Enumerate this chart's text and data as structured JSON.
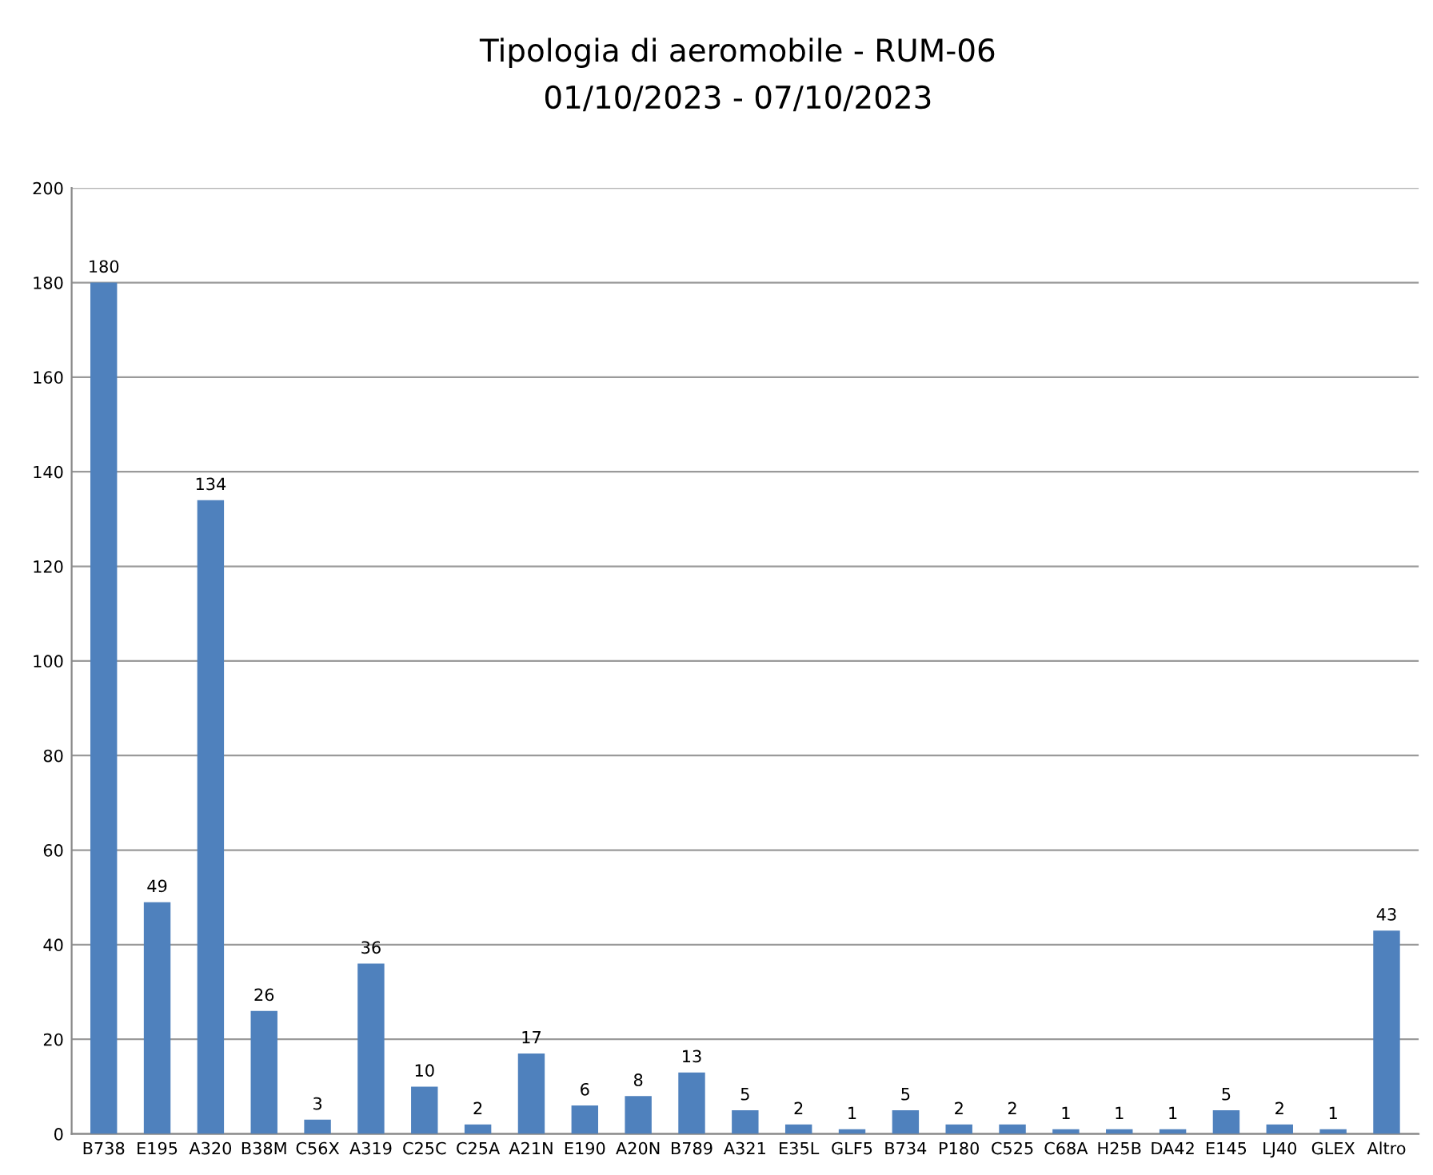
{
  "chart_data": {
    "type": "bar",
    "title": "Tipologia di aeromobile - RUM-06",
    "subtitle": "01/10/2023 - 07/10/2023",
    "categories": [
      "B738",
      "E195",
      "A320",
      "B38M",
      "C56X",
      "A319",
      "C25C",
      "C25A",
      "A21N",
      "E190",
      "A20N",
      "B789",
      "A321",
      "E35L",
      "GLF5",
      "B734",
      "P180",
      "C525",
      "C68A",
      "H25B",
      "DA42",
      "E145",
      "LJ40",
      "GLEX",
      "Altro"
    ],
    "values": [
      180,
      49,
      134,
      26,
      3,
      36,
      10,
      2,
      17,
      6,
      8,
      13,
      5,
      2,
      1,
      5,
      2,
      2,
      1,
      1,
      1,
      5,
      2,
      1,
      43
    ],
    "color": "#4f81bd",
    "ylim": [
      0,
      200
    ],
    "yticks": [
      0,
      20,
      40,
      60,
      80,
      100,
      120,
      140,
      160,
      180,
      200
    ],
    "grid": "y",
    "data_labels": true
  }
}
